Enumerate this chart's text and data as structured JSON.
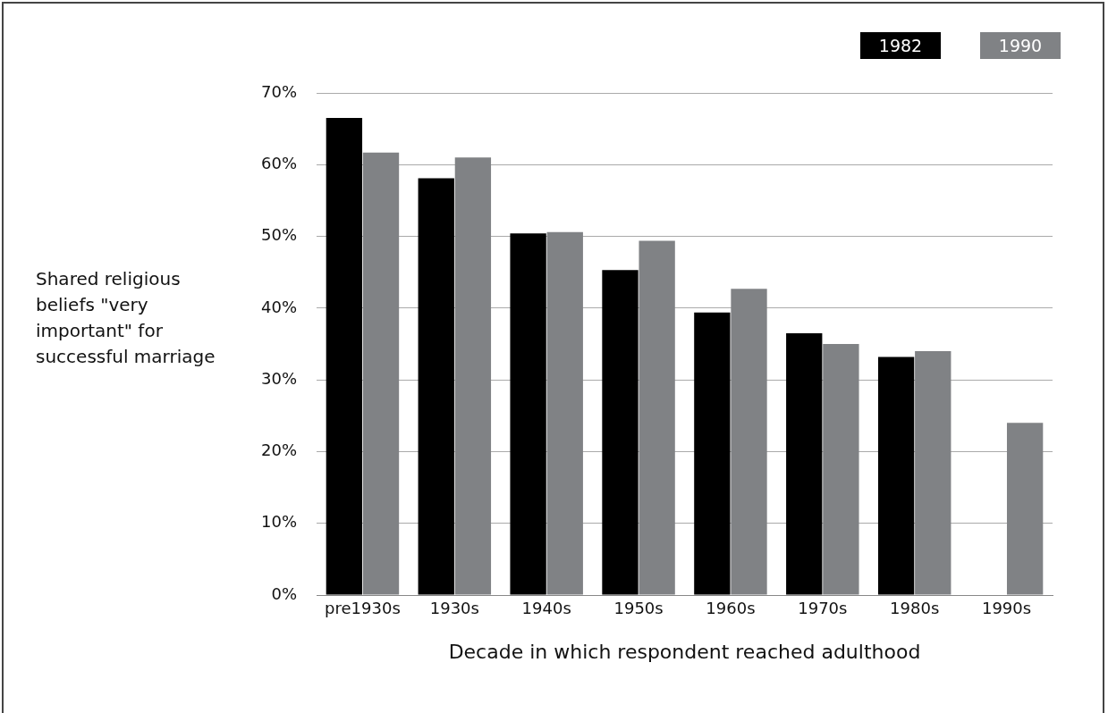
{
  "chart_data": {
    "type": "bar",
    "xlabel": "Decade in which respondent reached adulthood",
    "ylabel": "Shared religious beliefs \"very important\" for successful marriage",
    "categories": [
      "pre1930s",
      "1930s",
      "1940s",
      "1950s",
      "1960s",
      "1970s",
      "1980s",
      "1990s"
    ],
    "series": [
      {
        "name": "1982",
        "color": "#000000",
        "values": [
          66.5,
          58.1,
          50.4,
          45.3,
          39.4,
          36.5,
          33.2,
          null
        ]
      },
      {
        "name": "1990",
        "color": "#808285",
        "values": [
          61.7,
          61.0,
          50.6,
          49.4,
          42.7,
          35.0,
          34.0,
          24.0
        ]
      }
    ],
    "ylim": [
      0,
      70
    ],
    "yticks": [
      {
        "value": 0,
        "label": "0%"
      },
      {
        "value": 10,
        "label": "10%"
      },
      {
        "value": 20,
        "label": "20%"
      },
      {
        "value": 30,
        "label": "30%"
      },
      {
        "value": 40,
        "label": "40%"
      },
      {
        "value": 50,
        "label": "50%"
      },
      {
        "value": 60,
        "label": "60%"
      },
      {
        "value": 70,
        "label": "70%"
      }
    ],
    "grid": "y",
    "legend": "top right"
  }
}
